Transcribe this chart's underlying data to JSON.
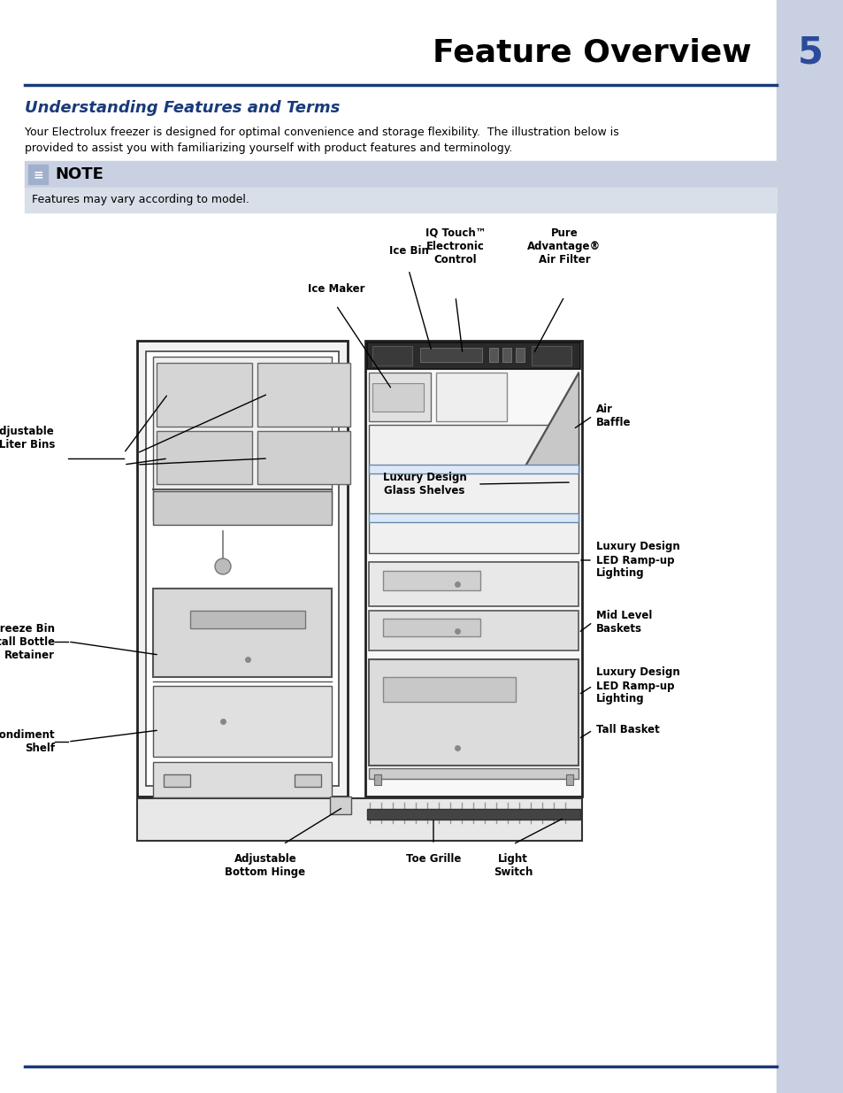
{
  "page_title": "Feature Overview",
  "page_number": "5",
  "section_title": "Understanding Features and Terms",
  "body_text": "Your Electrolux freezer is designed for optimal convenience and storage flexibility.  The illustration below is\nprovided to assist you with familiarizing yourself with product features and terminology.",
  "note_label": "NOTE",
  "note_text": "Features may vary according to model.",
  "sidebar_color": "#c8d0e2",
  "header_line_color": "#1a3a7a",
  "note_bg_color": "#c8d0e2",
  "note_text_bg": "#d8dfe8",
  "section_title_color": "#1a3a7a",
  "page_num_color": "#2c4a9a",
  "body_font_color": "#000000",
  "labels": {
    "ice_bin": "Ice Bin",
    "ice_maker": "Ice Maker",
    "iq_touch": "IQ Touch™\nElectronic\nControl",
    "pure_advantage": "Pure\nAdvantage®\nAir Filter",
    "air_baffle": "Air\nBaffle",
    "luxury_glass": "Luxury Design\nGlass Shelves",
    "luxury_led1": "Luxury Design\nLED Ramp-up\nLighting",
    "mid_level": "Mid Level\nBaskets",
    "luxury_led2": "Luxury Design\nLED Ramp-up\nLighting",
    "tall_basket": "Tall Basket",
    "adjustable_bins": "Adjustable\nTwo Liter Bins",
    "soft_freeze": "Soft Freeze Bin\nw/tall Bottle\nRetainer",
    "condiment": "Condiment\nShelf",
    "adj_hinge": "Adjustable\nBottom Hinge",
    "toe_grille": "Toe Grille",
    "light_switch": "Light\nSwitch"
  },
  "footer_line_color": "#1a3a7a"
}
